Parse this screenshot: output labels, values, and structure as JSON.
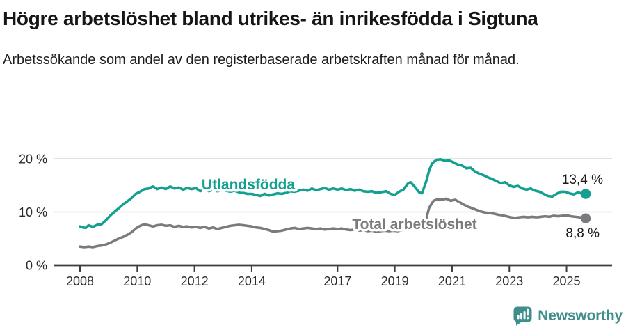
{
  "header": {
    "title": "Högre arbetslöshet bland utrikes- än inrikesfödda i Sigtuna",
    "subtitle": "Arbetssökande som andel av den registerbaserade arbetskraften månad för månad."
  },
  "footer": {
    "brand": "Newsworthy"
  },
  "colors": {
    "accent_teal": "#14a090",
    "line_gray": "#7b7b7f",
    "grid": "#d9d9d9",
    "axis": "#3d3d3d",
    "logo_teal": "#3e8e8b"
  },
  "chart_data": {
    "type": "line",
    "title": "Högre arbetslöshet bland utrikes- än inrikesfödda i Sigtuna",
    "subtitle": "Arbetssökande som andel av den registerbaserade arbetskraften månad för månad.",
    "unit": "%",
    "xlabel": "",
    "ylabel": "",
    "ylim": [
      0,
      22
    ],
    "xlim": [
      2007.1,
      2026.6
    ],
    "grid": "horizontal",
    "legend_position": "inline-labels",
    "yticks": [
      {
        "value": 0,
        "label": "0 %"
      },
      {
        "value": 10,
        "label": "10 %"
      },
      {
        "value": 20,
        "label": "20 %"
      }
    ],
    "xticks": [
      {
        "value": 2008,
        "label": "2008"
      },
      {
        "value": 2010,
        "label": "2010"
      },
      {
        "value": 2012,
        "label": "2012"
      },
      {
        "value": 2014,
        "label": "2014"
      },
      {
        "value": 2017,
        "label": "2017"
      },
      {
        "value": 2019,
        "label": "2019"
      },
      {
        "value": 2021,
        "label": "2021"
      },
      {
        "value": 2023,
        "label": "2023"
      },
      {
        "value": 2025,
        "label": "2025"
      }
    ],
    "series": [
      {
        "name": "Utlandsfödda",
        "color": "#14a090",
        "end_value": 13.4,
        "end_label": "13,4 %",
        "points": [
          [
            2008.0,
            7.3
          ],
          [
            2008.1,
            7.1
          ],
          [
            2008.2,
            7.0
          ],
          [
            2008.3,
            7.5
          ],
          [
            2008.45,
            7.2
          ],
          [
            2008.6,
            7.6
          ],
          [
            2008.75,
            7.7
          ],
          [
            2008.9,
            8.4
          ],
          [
            2009.05,
            9.3
          ],
          [
            2009.2,
            10.0
          ],
          [
            2009.35,
            10.7
          ],
          [
            2009.5,
            11.4
          ],
          [
            2009.65,
            12.0
          ],
          [
            2009.8,
            12.6
          ],
          [
            2009.95,
            13.4
          ],
          [
            2010.1,
            13.8
          ],
          [
            2010.25,
            14.3
          ],
          [
            2010.4,
            14.4
          ],
          [
            2010.55,
            14.8
          ],
          [
            2010.7,
            14.3
          ],
          [
            2010.85,
            14.6
          ],
          [
            2011.0,
            14.3
          ],
          [
            2011.15,
            14.8
          ],
          [
            2011.3,
            14.4
          ],
          [
            2011.45,
            14.6
          ],
          [
            2011.6,
            14.2
          ],
          [
            2011.75,
            14.5
          ],
          [
            2011.9,
            14.3
          ],
          [
            2012.05,
            14.5
          ],
          [
            2012.2,
            13.9
          ],
          [
            2012.35,
            14.3
          ],
          [
            2012.5,
            13.9
          ],
          [
            2012.65,
            14.2
          ],
          [
            2012.8,
            13.9
          ],
          [
            2012.95,
            14.1
          ],
          [
            2013.1,
            14.0
          ],
          [
            2013.25,
            13.8
          ],
          [
            2013.4,
            14.0
          ],
          [
            2013.55,
            13.7
          ],
          [
            2013.7,
            13.6
          ],
          [
            2013.85,
            13.4
          ],
          [
            2014.0,
            13.4
          ],
          [
            2014.15,
            13.2
          ],
          [
            2014.3,
            13.0
          ],
          [
            2014.45,
            13.4
          ],
          [
            2014.6,
            13.1
          ],
          [
            2014.75,
            13.3
          ],
          [
            2014.9,
            13.5
          ],
          [
            2015.05,
            13.4
          ],
          [
            2015.2,
            13.6
          ],
          [
            2015.35,
            13.9
          ],
          [
            2015.5,
            13.8
          ],
          [
            2015.65,
            14.0
          ],
          [
            2015.8,
            14.2
          ],
          [
            2015.95,
            14.0
          ],
          [
            2016.1,
            14.4
          ],
          [
            2016.25,
            14.1
          ],
          [
            2016.4,
            14.3
          ],
          [
            2016.55,
            14.5
          ],
          [
            2016.7,
            14.2
          ],
          [
            2016.85,
            14.4
          ],
          [
            2017.0,
            14.2
          ],
          [
            2017.15,
            14.4
          ],
          [
            2017.3,
            14.1
          ],
          [
            2017.45,
            14.3
          ],
          [
            2017.6,
            14.0
          ],
          [
            2017.75,
            14.2
          ],
          [
            2017.9,
            13.9
          ],
          [
            2018.05,
            13.8
          ],
          [
            2018.2,
            13.9
          ],
          [
            2018.35,
            13.6
          ],
          [
            2018.5,
            13.7
          ],
          [
            2018.7,
            13.9
          ],
          [
            2018.85,
            13.4
          ],
          [
            2019.0,
            13.2
          ],
          [
            2019.15,
            13.8
          ],
          [
            2019.3,
            14.2
          ],
          [
            2019.45,
            15.3
          ],
          [
            2019.55,
            15.6
          ],
          [
            2019.7,
            14.7
          ],
          [
            2019.85,
            13.7
          ],
          [
            2019.95,
            13.5
          ],
          [
            2020.1,
            15.8
          ],
          [
            2020.2,
            17.8
          ],
          [
            2020.3,
            19.1
          ],
          [
            2020.45,
            19.8
          ],
          [
            2020.6,
            19.9
          ],
          [
            2020.75,
            19.6
          ],
          [
            2020.9,
            19.7
          ],
          [
            2021.05,
            19.3
          ],
          [
            2021.2,
            18.9
          ],
          [
            2021.35,
            18.7
          ],
          [
            2021.5,
            18.2
          ],
          [
            2021.65,
            18.3
          ],
          [
            2021.8,
            17.6
          ],
          [
            2021.95,
            17.2
          ],
          [
            2022.1,
            16.9
          ],
          [
            2022.25,
            16.5
          ],
          [
            2022.4,
            16.2
          ],
          [
            2022.55,
            15.8
          ],
          [
            2022.7,
            15.4
          ],
          [
            2022.85,
            15.6
          ],
          [
            2023.0,
            15.0
          ],
          [
            2023.15,
            14.7
          ],
          [
            2023.3,
            14.9
          ],
          [
            2023.45,
            14.4
          ],
          [
            2023.6,
            14.2
          ],
          [
            2023.75,
            14.4
          ],
          [
            2023.9,
            14.0
          ],
          [
            2024.05,
            13.8
          ],
          [
            2024.2,
            13.4
          ],
          [
            2024.35,
            13.0
          ],
          [
            2024.5,
            12.9
          ],
          [
            2024.65,
            13.4
          ],
          [
            2024.8,
            13.8
          ],
          [
            2024.95,
            13.8
          ],
          [
            2025.1,
            13.5
          ],
          [
            2025.25,
            13.3
          ],
          [
            2025.4,
            13.7
          ],
          [
            2025.55,
            13.4
          ],
          [
            2025.67,
            13.4
          ]
        ]
      },
      {
        "name": "Total arbetslöshet",
        "color": "#7b7b7f",
        "end_value": 8.8,
        "end_label": "8,8 %",
        "points": [
          [
            2008.0,
            3.5
          ],
          [
            2008.15,
            3.4
          ],
          [
            2008.3,
            3.5
          ],
          [
            2008.45,
            3.4
          ],
          [
            2008.6,
            3.6
          ],
          [
            2008.75,
            3.7
          ],
          [
            2008.9,
            3.9
          ],
          [
            2009.05,
            4.2
          ],
          [
            2009.2,
            4.6
          ],
          [
            2009.35,
            5.0
          ],
          [
            2009.5,
            5.3
          ],
          [
            2009.65,
            5.7
          ],
          [
            2009.8,
            6.2
          ],
          [
            2009.95,
            6.9
          ],
          [
            2010.1,
            7.4
          ],
          [
            2010.25,
            7.7
          ],
          [
            2010.4,
            7.5
          ],
          [
            2010.55,
            7.3
          ],
          [
            2010.7,
            7.5
          ],
          [
            2010.85,
            7.6
          ],
          [
            2011.0,
            7.4
          ],
          [
            2011.15,
            7.5
          ],
          [
            2011.3,
            7.2
          ],
          [
            2011.45,
            7.4
          ],
          [
            2011.6,
            7.2
          ],
          [
            2011.75,
            7.3
          ],
          [
            2011.9,
            7.1
          ],
          [
            2012.05,
            7.2
          ],
          [
            2012.2,
            7.0
          ],
          [
            2012.35,
            7.2
          ],
          [
            2012.5,
            6.9
          ],
          [
            2012.65,
            7.1
          ],
          [
            2012.8,
            6.8
          ],
          [
            2012.95,
            7.0
          ],
          [
            2013.1,
            7.2
          ],
          [
            2013.25,
            7.4
          ],
          [
            2013.4,
            7.5
          ],
          [
            2013.55,
            7.6
          ],
          [
            2013.7,
            7.5
          ],
          [
            2013.85,
            7.4
          ],
          [
            2014.0,
            7.3
          ],
          [
            2014.15,
            7.1
          ],
          [
            2014.3,
            7.0
          ],
          [
            2014.45,
            6.8
          ],
          [
            2014.6,
            6.6
          ],
          [
            2014.75,
            6.3
          ],
          [
            2014.9,
            6.4
          ],
          [
            2015.05,
            6.5
          ],
          [
            2015.2,
            6.7
          ],
          [
            2015.35,
            6.9
          ],
          [
            2015.5,
            7.0
          ],
          [
            2015.65,
            6.8
          ],
          [
            2015.8,
            6.9
          ],
          [
            2015.95,
            7.0
          ],
          [
            2016.1,
            6.9
          ],
          [
            2016.25,
            6.8
          ],
          [
            2016.4,
            6.9
          ],
          [
            2016.55,
            6.7
          ],
          [
            2016.7,
            6.8
          ],
          [
            2016.85,
            6.9
          ],
          [
            2017.0,
            6.8
          ],
          [
            2017.15,
            6.9
          ],
          [
            2017.3,
            6.7
          ],
          [
            2017.45,
            6.6
          ],
          [
            2017.6,
            6.7
          ],
          [
            2017.75,
            6.5
          ],
          [
            2017.9,
            6.6
          ],
          [
            2018.05,
            6.4
          ],
          [
            2018.2,
            6.5
          ],
          [
            2018.35,
            6.3
          ],
          [
            2018.5,
            6.4
          ],
          [
            2018.65,
            6.5
          ],
          [
            2018.8,
            6.4
          ],
          [
            2018.95,
            6.5
          ],
          [
            2019.1,
            6.4
          ],
          [
            2019.25,
            6.6
          ],
          [
            2019.4,
            6.7
          ],
          [
            2019.55,
            6.8
          ],
          [
            2019.7,
            7.0
          ],
          [
            2019.9,
            7.1
          ],
          [
            2020.05,
            7.8
          ],
          [
            2020.2,
            10.8
          ],
          [
            2020.35,
            12.1
          ],
          [
            2020.5,
            12.4
          ],
          [
            2020.65,
            12.3
          ],
          [
            2020.8,
            12.5
          ],
          [
            2020.95,
            12.1
          ],
          [
            2021.1,
            12.3
          ],
          [
            2021.25,
            11.9
          ],
          [
            2021.4,
            11.4
          ],
          [
            2021.55,
            11.0
          ],
          [
            2021.7,
            10.7
          ],
          [
            2021.85,
            10.4
          ],
          [
            2022.0,
            10.1
          ],
          [
            2022.15,
            9.9
          ],
          [
            2022.3,
            9.8
          ],
          [
            2022.45,
            9.7
          ],
          [
            2022.6,
            9.5
          ],
          [
            2022.75,
            9.4
          ],
          [
            2022.9,
            9.2
          ],
          [
            2023.05,
            9.0
          ],
          [
            2023.2,
            8.9
          ],
          [
            2023.35,
            9.0
          ],
          [
            2023.5,
            9.1
          ],
          [
            2023.65,
            9.0
          ],
          [
            2023.8,
            9.1
          ],
          [
            2023.95,
            9.0
          ],
          [
            2024.1,
            9.1
          ],
          [
            2024.25,
            9.2
          ],
          [
            2024.4,
            9.1
          ],
          [
            2024.55,
            9.3
          ],
          [
            2024.7,
            9.2
          ],
          [
            2024.85,
            9.3
          ],
          [
            2025.0,
            9.4
          ],
          [
            2025.15,
            9.2
          ],
          [
            2025.3,
            9.1
          ],
          [
            2025.45,
            9.0
          ],
          [
            2025.6,
            8.9
          ],
          [
            2025.67,
            8.8
          ]
        ]
      }
    ]
  }
}
